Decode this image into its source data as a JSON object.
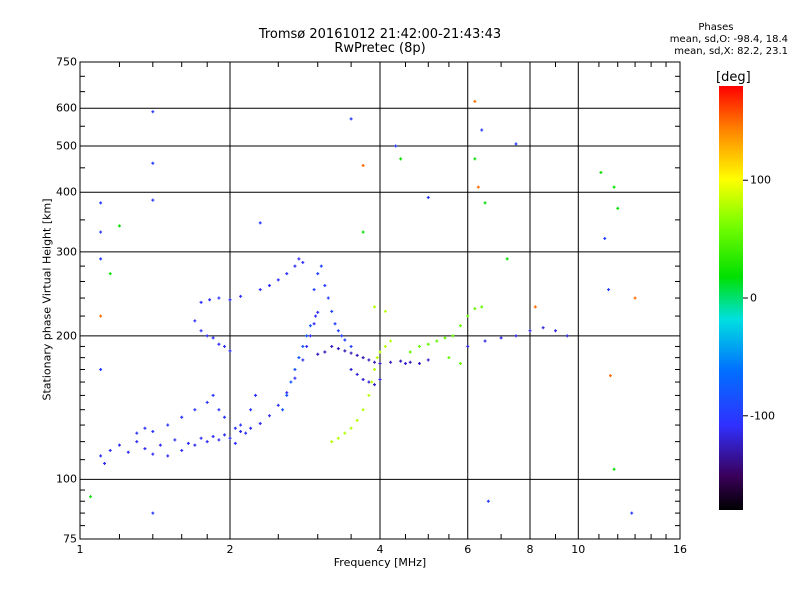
{
  "chart_data": {
    "type": "scatter",
    "title": "Tromsø 20161012 21:42:00-21:43:43",
    "subtitle": "RwPretec (8p)",
    "xlabel": "Frequency [MHz]",
    "ylabel": "Stationary phase Virtual Height [km]",
    "x_scale": "log",
    "y_scale": "log",
    "xlim": [
      1,
      16
    ],
    "ylim": [
      75,
      750
    ],
    "x_ticks": [
      "1",
      "2",
      "4",
      "6",
      "8",
      "10",
      "16"
    ],
    "x_tick_values": [
      1,
      2,
      4,
      6,
      8,
      10,
      16
    ],
    "y_ticks": [
      "750",
      "600",
      "500",
      "400",
      "300",
      "200",
      "100",
      "75"
    ],
    "y_tick_values": [
      750,
      600,
      500,
      400,
      300,
      200,
      100,
      75
    ],
    "x_grid": [
      1,
      2,
      4,
      6,
      8,
      10
    ],
    "y_grid": [
      600,
      500,
      400,
      300,
      200,
      100
    ],
    "stats": {
      "header": "Phases",
      "line_o": "mean, sd,O: -98.4, 18.4",
      "line_x": "mean, sd,X:  82.2, 23.1"
    },
    "colorbar": {
      "title": "[deg]",
      "range": [
        -180,
        180
      ],
      "ticks": [
        "100",
        "0",
        "-100"
      ],
      "tick_values": [
        100,
        0,
        -100
      ]
    },
    "series": [
      {
        "phase": -110,
        "points": [
          [
            1.1,
            112
          ],
          [
            1.12,
            108
          ],
          [
            1.15,
            115
          ],
          [
            1.2,
            118
          ],
          [
            1.25,
            114
          ],
          [
            1.3,
            120
          ],
          [
            1.35,
            116
          ],
          [
            1.4,
            113
          ],
          [
            1.45,
            118
          ],
          [
            1.5,
            112
          ],
          [
            1.55,
            121
          ],
          [
            1.6,
            115
          ],
          [
            1.65,
            119
          ],
          [
            1.7,
            118
          ],
          [
            1.75,
            122
          ],
          [
            1.8,
            120
          ],
          [
            1.85,
            123
          ],
          [
            1.9,
            121
          ],
          [
            1.95,
            124
          ],
          [
            2.0,
            122
          ],
          [
            2.05,
            119
          ],
          [
            2.1,
            126
          ],
          [
            2.15,
            125
          ],
          [
            2.2,
            128
          ],
          [
            2.3,
            131
          ],
          [
            2.4,
            136
          ],
          [
            2.5,
            143
          ],
          [
            2.6,
            152
          ],
          [
            2.7,
            163
          ],
          [
            2.8,
            178
          ],
          [
            2.85,
            190
          ],
          [
            2.9,
            200
          ],
          [
            2.95,
            212
          ],
          [
            2.97,
            220
          ],
          [
            3.0,
            224
          ]
        ]
      },
      {
        "phase": -105,
        "points": [
          [
            1.3,
            125
          ],
          [
            1.35,
            128
          ],
          [
            1.4,
            126
          ],
          [
            1.5,
            130
          ],
          [
            1.6,
            135
          ],
          [
            1.7,
            140
          ],
          [
            1.8,
            145
          ],
          [
            1.85,
            150
          ],
          [
            1.9,
            140
          ],
          [
            1.95,
            135
          ],
          [
            2.05,
            128
          ],
          [
            2.1,
            130
          ],
          [
            2.2,
            140
          ],
          [
            2.25,
            150
          ]
        ]
      },
      {
        "phase": -108,
        "points": [
          [
            1.7,
            215
          ],
          [
            1.75,
            205
          ],
          [
            1.8,
            200
          ],
          [
            1.85,
            198
          ],
          [
            1.9,
            192
          ],
          [
            1.95,
            190
          ],
          [
            2.0,
            186
          ],
          [
            1.75,
            235
          ],
          [
            1.82,
            238
          ],
          [
            1.9,
            240
          ],
          [
            2.0,
            238
          ],
          [
            2.1,
            242
          ],
          [
            2.3,
            250
          ],
          [
            2.4,
            255
          ],
          [
            2.5,
            262
          ],
          [
            2.6,
            270
          ],
          [
            2.7,
            280
          ],
          [
            2.75,
            290
          ],
          [
            2.8,
            285
          ]
        ]
      },
      {
        "phase": -80,
        "points": [
          [
            2.55,
            140
          ],
          [
            2.6,
            150
          ],
          [
            2.65,
            160
          ],
          [
            2.7,
            170
          ],
          [
            2.75,
            180
          ],
          [
            2.8,
            190
          ],
          [
            2.85,
            200
          ],
          [
            2.9,
            210
          ]
        ]
      },
      {
        "phase": -95,
        "points": [
          [
            2.95,
            250
          ],
          [
            3.0,
            270
          ],
          [
            3.05,
            280
          ],
          [
            3.1,
            255
          ],
          [
            3.15,
            240
          ],
          [
            3.2,
            225
          ],
          [
            3.25,
            212
          ],
          [
            3.3,
            205
          ],
          [
            3.35,
            200
          ],
          [
            3.4,
            196
          ],
          [
            3.5,
            190
          ]
        ]
      },
      {
        "phase": -125,
        "points": [
          [
            3.0,
            183
          ],
          [
            3.1,
            185
          ],
          [
            3.2,
            190
          ],
          [
            3.3,
            188
          ],
          [
            3.4,
            186
          ],
          [
            3.5,
            184
          ],
          [
            3.6,
            182
          ],
          [
            3.7,
            180
          ],
          [
            3.8,
            178
          ],
          [
            3.9,
            176
          ],
          [
            4.0,
            175
          ],
          [
            4.2,
            176
          ],
          [
            4.4,
            177
          ],
          [
            4.6,
            176
          ],
          [
            4.8,
            175
          ]
        ]
      },
      {
        "phase": -120,
        "points": [
          [
            3.5,
            170
          ],
          [
            3.6,
            166
          ],
          [
            3.7,
            162
          ],
          [
            3.8,
            160
          ],
          [
            3.9,
            158
          ],
          [
            4.0,
            162
          ],
          [
            4.5,
            175
          ],
          [
            5.0,
            178
          ]
        ]
      },
      {
        "phase": 80,
        "points": [
          [
            3.2,
            120
          ],
          [
            3.3,
            122
          ],
          [
            3.4,
            125
          ],
          [
            3.5,
            128
          ],
          [
            3.6,
            133
          ],
          [
            3.7,
            140
          ],
          [
            3.8,
            150
          ],
          [
            3.85,
            160
          ],
          [
            3.9,
            170
          ],
          [
            3.95,
            180
          ],
          [
            4.0,
            185
          ],
          [
            4.1,
            190
          ],
          [
            4.2,
            195
          ],
          [
            3.9,
            230
          ],
          [
            4.1,
            225
          ]
        ]
      },
      {
        "phase": 55,
        "points": [
          [
            4.6,
            185
          ],
          [
            4.8,
            190
          ],
          [
            5.0,
            192
          ],
          [
            5.2,
            195
          ],
          [
            5.4,
            198
          ],
          [
            5.6,
            200
          ],
          [
            5.8,
            210
          ],
          [
            6.0,
            220
          ],
          [
            6.2,
            228
          ],
          [
            6.4,
            230
          ],
          [
            5.5,
            180
          ],
          [
            5.8,
            175
          ]
        ]
      },
      {
        "phase": -115,
        "points": [
          [
            6.0,
            190
          ],
          [
            6.5,
            195
          ],
          [
            7.0,
            198
          ],
          [
            7.5,
            200
          ],
          [
            8.0,
            205
          ],
          [
            8.5,
            208
          ],
          [
            9.0,
            205
          ],
          [
            9.5,
            200
          ]
        ]
      },
      {
        "phase": -100,
        "points": [
          [
            1.1,
            380
          ],
          [
            1.1,
            330
          ],
          [
            1.1,
            290
          ],
          [
            1.4,
            590
          ],
          [
            1.4,
            460
          ],
          [
            1.4,
            385
          ],
          [
            1.4,
            85
          ],
          [
            2.3,
            345
          ],
          [
            3.5,
            570
          ],
          [
            4.3,
            500
          ],
          [
            5.0,
            390
          ],
          [
            6.4,
            540
          ],
          [
            7.5,
            505
          ],
          [
            11.3,
            320
          ],
          [
            11.5,
            250
          ],
          [
            1.1,
            170
          ],
          [
            6.6,
            90
          ],
          [
            12.8,
            85
          ]
        ]
      },
      {
        "phase": 20,
        "points": [
          [
            1.05,
            92
          ],
          [
            1.15,
            270
          ],
          [
            1.2,
            340
          ],
          [
            3.7,
            330
          ],
          [
            4.4,
            470
          ],
          [
            6.2,
            470
          ],
          [
            6.5,
            380
          ],
          [
            7.2,
            290
          ],
          [
            11.1,
            440
          ],
          [
            11.8,
            410
          ],
          [
            12.0,
            370
          ],
          [
            11.8,
            105
          ]
        ]
      },
      {
        "phase": 150,
        "points": [
          [
            1.1,
            220
          ],
          [
            3.7,
            455
          ],
          [
            6.2,
            620
          ],
          [
            6.3,
            410
          ],
          [
            8.2,
            230
          ],
          [
            11.6,
            165
          ],
          [
            13.0,
            240
          ]
        ]
      }
    ]
  }
}
